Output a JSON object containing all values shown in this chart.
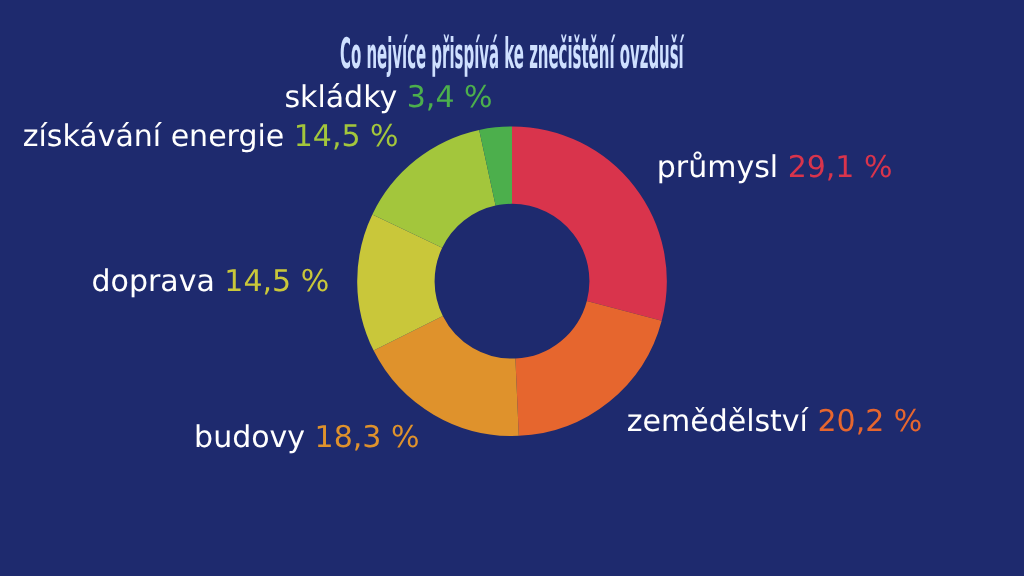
{
  "chart_data": {
    "type": "donut",
    "title": "Co nejvíce přispívá ke znečištění ovzduší",
    "categories": [
      "průmysl",
      "zemědělství",
      "budovy",
      "doprava",
      "získávání energie",
      "skládky"
    ],
    "values": [
      29.1,
      20.2,
      18.3,
      14.5,
      14.5,
      3.4
    ],
    "value_labels": [
      "29,1 %",
      "20,2 %",
      "18,3 %",
      "14,5 %",
      "14,5 %",
      "3,4 %"
    ],
    "colors": [
      "#d9344c",
      "#e6662e",
      "#df922c",
      "#c9c73a",
      "#a3c63c",
      "#4caf4c"
    ],
    "legend": false
  }
}
